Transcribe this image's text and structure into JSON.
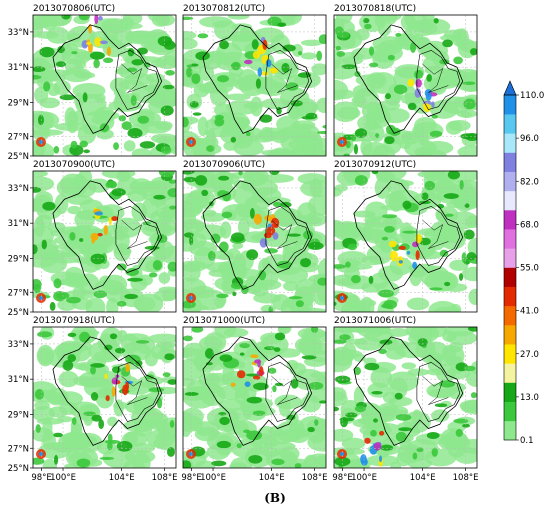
{
  "figure": {
    "caption": "(B)"
  },
  "panels": [
    {
      "title": "2013070806(UTC)"
    },
    {
      "title": "2013070812(UTC)"
    },
    {
      "title": "2013070818(UTC)"
    },
    {
      "title": "2013070900(UTC)"
    },
    {
      "title": "2013070906(UTC)"
    },
    {
      "title": "2013070912(UTC)"
    },
    {
      "title": "2013070918(UTC)"
    },
    {
      "title": "2013071000(UTC)"
    },
    {
      "title": "2013071006(UTC)"
    }
  ],
  "axes": {
    "lat_ticks": [
      "33°N",
      "31°N",
      "29°N",
      "27°N",
      "25°N"
    ],
    "lon_ticks": [
      "98°E",
      "100°E",
      "104°E",
      "108°E"
    ]
  },
  "colorbar": {
    "labels": [
      "110.0",
      "96.0",
      "82.0",
      "68.0",
      "55.0",
      "41.0",
      "27.0",
      "13.0",
      "0.1"
    ],
    "colors": [
      "#8ee88e",
      "#3cc83c",
      "#16a816",
      "#f3f3a0",
      "#ffe600",
      "#f7a800",
      "#f46a00",
      "#e42a00",
      "#b00000",
      "#e8a0e8",
      "#e070e0",
      "#c030c0",
      "#e8e8ff",
      "#b0b0f0",
      "#8080e0",
      "#a8e8f8",
      "#58c8f0",
      "#2090e8"
    ],
    "extend_color": "#1a6fd8"
  }
}
